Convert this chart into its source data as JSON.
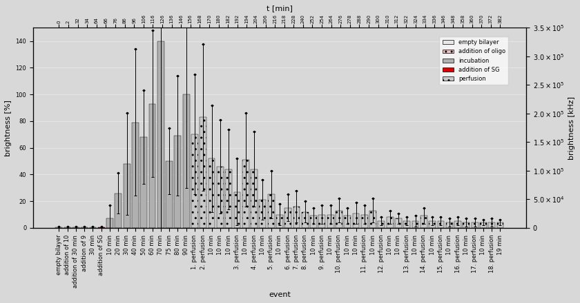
{
  "title_top": "t [min]",
  "xlabel": "event",
  "ylabel_left": "brightness [%]",
  "ylabel_right": "brightness [kHz]",
  "ylim_left": [
    0,
    150
  ],
  "ylim_right": [
    0,
    350000
  ],
  "background_color": "#d8d8d8",
  "categories": [
    "empty bilayer",
    "addition of 10",
    "addition of 30 min",
    "addition of 9",
    "30 min",
    "addition of SG",
    "10 min",
    "20 min",
    "30 min",
    "40 min",
    "50 min",
    "60 min",
    "70 min",
    "75 min",
    "80 min",
    "90 min",
    "1. perfusion",
    "2. perfusion",
    "10 min",
    "10 min",
    "10 min",
    "3. perfusion",
    "10 min",
    "4. perfusion",
    "10 min",
    "5. perfusion",
    "10 min",
    "6. perfusion",
    "7. perfusion",
    "8. perfusion",
    "10 min",
    "9. perfusion",
    "10 min",
    "10. perfusion",
    "10 min",
    "10 min",
    "11. perfusion",
    "10 min",
    "12. perfusion",
    "10 min",
    "10 min",
    "13. perfusion",
    "10 min",
    "14. perfusion",
    "10 min",
    "15. perfusion",
    "10 min",
    "16. perfusion",
    "10 min",
    "17. perfusion",
    "10 min",
    "18. perfusion",
    "19 min"
  ],
  "bar_heights": [
    0.5,
    0.5,
    0.5,
    0.5,
    0.5,
    0.5,
    7,
    26,
    48,
    79,
    68,
    93,
    140,
    50,
    69,
    100,
    70,
    83,
    52,
    46,
    44,
    27,
    51,
    44,
    21,
    25,
    10,
    15,
    16,
    12,
    9,
    10,
    10,
    13,
    9,
    11,
    10,
    13,
    5,
    8,
    7,
    5,
    5,
    9,
    5,
    5,
    4,
    5,
    4,
    4,
    4,
    4,
    4
  ],
  "bar_errors": [
    0.3,
    0.3,
    0.3,
    0.3,
    0.3,
    0.3,
    10,
    15,
    38,
    55,
    35,
    55,
    175,
    25,
    45,
    70,
    45,
    55,
    40,
    35,
    30,
    25,
    35,
    28,
    15,
    18,
    8,
    10,
    12,
    8,
    6,
    7,
    7,
    9,
    6,
    8,
    7,
    9,
    3,
    5,
    4,
    3,
    4,
    6,
    3,
    3,
    3,
    3,
    3,
    3,
    2,
    3,
    2
  ],
  "bar_types": [
    "empty",
    "empty",
    "empty",
    "empty",
    "empty",
    "sg",
    "incubation",
    "incubation",
    "incubation",
    "incubation",
    "incubation",
    "incubation",
    "incubation",
    "incubation",
    "incubation",
    "incubation",
    "perfusion",
    "perfusion",
    "perfusion",
    "perfusion",
    "perfusion",
    "perfusion",
    "perfusion",
    "perfusion",
    "perfusion",
    "perfusion",
    "perfusion",
    "perfusion",
    "perfusion",
    "perfusion",
    "perfusion",
    "perfusion",
    "perfusion",
    "perfusion",
    "perfusion",
    "perfusion",
    "perfusion",
    "perfusion",
    "perfusion",
    "perfusion",
    "perfusion",
    "perfusion",
    "perfusion",
    "perfusion",
    "perfusion",
    "perfusion",
    "perfusion",
    "perfusion",
    "perfusion",
    "perfusion",
    "perfusion",
    "perfusion",
    "perfusion"
  ],
  "colors": {
    "empty": "#e8e8e8",
    "oligo": "#f0c0c0",
    "incubation": "#b0b0b0",
    "sg": "#dd0000",
    "perfusion": "#c8c8c8"
  },
  "t_min_labels": [
    "0",
    "2",
    "32",
    "34",
    "64",
    "66",
    "76",
    "86",
    "96",
    "106",
    "116",
    "126",
    "136",
    "146",
    "156",
    "168",
    "170",
    "180",
    "182",
    "192",
    "194",
    "204",
    "206",
    "216",
    "218",
    "228",
    "240",
    "252",
    "254",
    "264",
    "276",
    "278",
    "288",
    "290",
    "300",
    "310",
    "312",
    "322",
    "324",
    "334",
    "336",
    "346",
    "348",
    "358",
    "360",
    "370",
    "372",
    "382"
  ],
  "t_min_positions": [
    0,
    1,
    2,
    3,
    4,
    5,
    6,
    7,
    8,
    9,
    10,
    11,
    12,
    13,
    14,
    15,
    16,
    17,
    18,
    19,
    20,
    21,
    22,
    23,
    24,
    25,
    26,
    27,
    28,
    29,
    30,
    31,
    32,
    33,
    34,
    35,
    36,
    37,
    38,
    39,
    40,
    41,
    42,
    43,
    44,
    45,
    46,
    47
  ],
  "right_yticks": [
    0,
    50000,
    100000,
    150000,
    200000,
    250000,
    300000,
    350000
  ],
  "right_yticklabels": [
    "0",
    "5.0×10⁴",
    "1.0×10⁵",
    "1.5×10⁵",
    "2.0×10⁵",
    "2.5×10⁵",
    "3.0×10⁵",
    "3.5×10⁵"
  ]
}
